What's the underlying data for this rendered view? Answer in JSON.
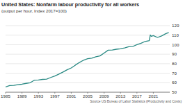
{
  "chart_data": {
    "type": "line",
    "title": "United States: Nonfarm labour productivity for all workers",
    "subtitle": "(output per hour, Index 2017=100)",
    "source": "Source US Bureau of Labor Statistics (Productivity and Costs)",
    "x": [
      1985,
      1986,
      1987,
      1988,
      1989,
      1990,
      1991,
      1992,
      1993,
      1994,
      1995,
      1996,
      1997,
      1998,
      1999,
      2000,
      2001,
      2002,
      2003,
      2004,
      2005,
      2006,
      2007,
      2008,
      2009,
      2010,
      2011,
      2012,
      2013,
      2014,
      2015,
      2016,
      2017,
      2018,
      2019,
      2020,
      2020.25,
      2020.5,
      2021,
      2022,
      2023,
      2024,
      2024.75
    ],
    "values": [
      55.5,
      57.0,
      57.2,
      57.9,
      58.4,
      59.3,
      60.0,
      62.6,
      62.9,
      63.5,
      63.8,
      65.5,
      67.0,
      69.0,
      71.2,
      73.6,
      75.5,
      78.5,
      81.3,
      83.7,
      85.2,
      85.9,
      87.3,
      88.2,
      91.2,
      94.2,
      94.4,
      95.2,
      95.7,
      96.5,
      97.8,
      98.1,
      100,
      101.5,
      103.4,
      104.2,
      110.3,
      108.8,
      109.5,
      107.6,
      109.2,
      111.5,
      112.8
    ],
    "color": "#2a8a84",
    "xlim": [
      1985,
      2025
    ],
    "xticks": [
      1985,
      1989,
      1993,
      1997,
      2001,
      2005,
      2009,
      2013,
      2017,
      2021
    ],
    "ylim": [
      50,
      120
    ],
    "yticks": [
      50,
      60,
      70,
      80,
      90,
      100,
      110,
      120
    ],
    "grid": true
  }
}
